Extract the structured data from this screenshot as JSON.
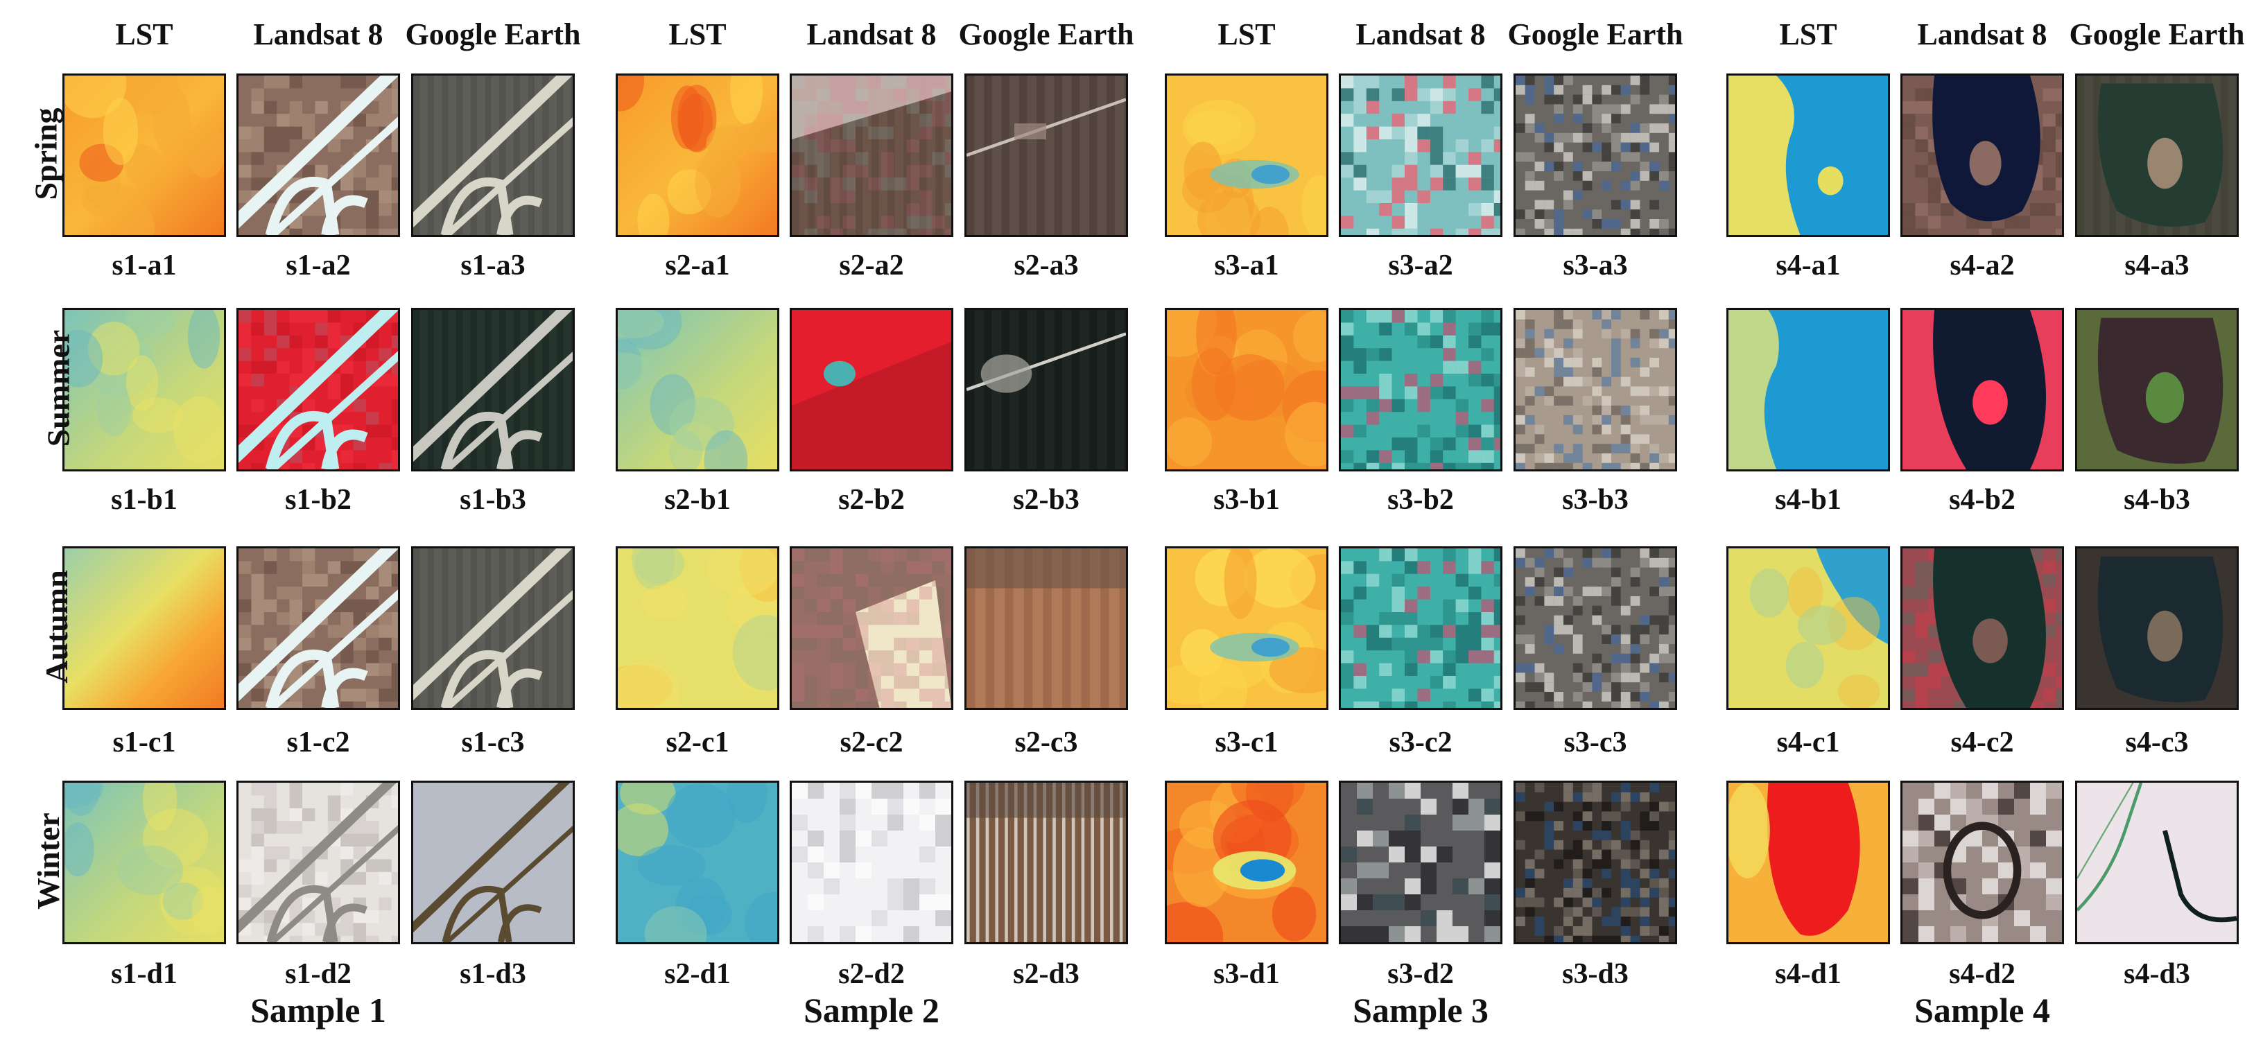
{
  "column_headers": [
    "LST",
    "Landsat 8",
    "Google Earth"
  ],
  "seasons": [
    "Spring",
    "Summer",
    "Autumn",
    "Winter"
  ],
  "samples": [
    {
      "title": "Sample 1",
      "rows": [
        {
          "captions": [
            "s1-a1",
            "s1-a2",
            "s1-a3"
          ],
          "styles": [
            "lst-warm",
            "l8-runway-natural",
            "ge-runway"
          ]
        },
        {
          "captions": [
            "s1-b1",
            "s1-b2",
            "s1-b3"
          ],
          "styles": [
            "lst-cool",
            "l8-runway-red",
            "ge-runway-dark"
          ]
        },
        {
          "captions": [
            "s1-c1",
            "s1-c2",
            "s1-c3"
          ],
          "styles": [
            "lst-mixed-diag",
            "l8-runway-natural",
            "ge-runway"
          ]
        },
        {
          "captions": [
            "s1-d1",
            "s1-d2",
            "s1-d3"
          ],
          "styles": [
            "lst-cool",
            "l8-runway-snow",
            "ge-runway-snow"
          ]
        }
      ]
    },
    {
      "title": "Sample 2",
      "rows": [
        {
          "captions": [
            "s2-a1",
            "s2-a2",
            "s2-a3"
          ],
          "styles": [
            "lst-warm",
            "l8-field-brown",
            "ge-field-brown"
          ]
        },
        {
          "captions": [
            "s2-b1",
            "s2-b2",
            "s2-b3"
          ],
          "styles": [
            "lst-cool",
            "l8-field-red",
            "ge-field-dark"
          ]
        },
        {
          "captions": [
            "s2-c1",
            "s2-c2",
            "s2-c3"
          ],
          "styles": [
            "lst-mixed",
            "l8-field-light",
            "ge-field-tan"
          ]
        },
        {
          "captions": [
            "s2-d1",
            "s2-d2",
            "s2-d3"
          ],
          "styles": [
            "lst-cyan",
            "l8-snow-field",
            "ge-field-snow"
          ]
        }
      ]
    },
    {
      "title": "Sample 3",
      "rows": [
        {
          "captions": [
            "s3-a1",
            "s3-a2",
            "s3-a3"
          ],
          "styles": [
            "lst-warm-blob",
            "l8-urban-cyan",
            "ge-urban"
          ]
        },
        {
          "captions": [
            "s3-b1",
            "s3-b2",
            "s3-b3"
          ],
          "styles": [
            "lst-hot",
            "l8-urban-teal",
            "ge-urban-light"
          ]
        },
        {
          "captions": [
            "s3-c1",
            "s3-c2",
            "s3-c3"
          ],
          "styles": [
            "lst-warm-blob",
            "l8-urban-teal",
            "ge-urban"
          ]
        },
        {
          "captions": [
            "s3-d1",
            "s3-d2",
            "s3-d3"
          ],
          "styles": [
            "lst-hot-blob",
            "l8-urban-dark",
            "ge-urban-dark"
          ]
        }
      ]
    },
    {
      "title": "Sample 4",
      "rows": [
        {
          "captions": [
            "s4-a1",
            "s4-a2",
            "s4-a3"
          ],
          "styles": [
            "lst-lake",
            "l8-lake-dark",
            "ge-lake"
          ]
        },
        {
          "captions": [
            "s4-b1",
            "s4-b2",
            "s4-b3"
          ],
          "styles": [
            "lst-lake-big",
            "l8-lake-red",
            "ge-lake-green"
          ]
        },
        {
          "captions": [
            "s4-c1",
            "s4-c2",
            "s4-c3"
          ],
          "styles": [
            "lst-lake-mixed",
            "l8-lake-mixed",
            "ge-lake-dark"
          ]
        },
        {
          "captions": [
            "s4-d1",
            "s4-d2",
            "s4-d3"
          ],
          "styles": [
            "lst-lake-red",
            "l8-lake-winter",
            "ge-lake-snow"
          ]
        }
      ]
    }
  ]
}
